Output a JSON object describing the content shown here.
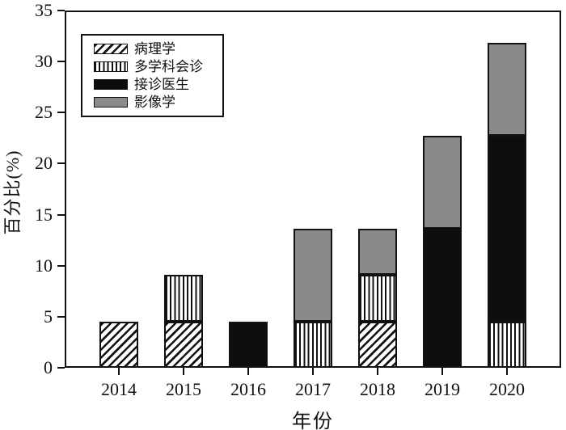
{
  "figure": {
    "ylabel": "百分比(%)",
    "xlabel": "年份"
  },
  "chart_data": {
    "type": "bar",
    "stacked": true,
    "title": "",
    "xlabel": "年份",
    "ylabel": "百分比(%)",
    "ylim": [
      0,
      35
    ],
    "yticks": [
      0,
      5,
      10,
      15,
      20,
      25,
      30,
      35
    ],
    "grid": false,
    "legend_position": "upper-left-inside",
    "categories": [
      "2014",
      "2015",
      "2016",
      "2017",
      "2018",
      "2019",
      "2020"
    ],
    "series": [
      {
        "name": "病理学",
        "pattern": "diagonal-hatch",
        "values": [
          4.55,
          4.55,
          0,
          0,
          4.55,
          0,
          0
        ]
      },
      {
        "name": "多学科会诊",
        "pattern": "vertical-stripes",
        "values": [
          0,
          4.55,
          0,
          4.55,
          4.55,
          0,
          4.55
        ]
      },
      {
        "name": "接诊医生",
        "pattern": "solid-black",
        "values": [
          0,
          0,
          4.55,
          0,
          0,
          13.64,
          18.18
        ]
      },
      {
        "name": "影像学",
        "pattern": "solid-gray",
        "values": [
          0,
          0,
          0,
          9.09,
          4.55,
          9.09,
          9.09
        ]
      }
    ],
    "totals": [
      4.55,
      9.09,
      4.55,
      13.64,
      13.64,
      22.73,
      31.82
    ],
    "colors": {
      "black": "#0d0d0d",
      "gray": "#8a8a8a",
      "axis": "#111111",
      "background": "#ffffff"
    }
  }
}
